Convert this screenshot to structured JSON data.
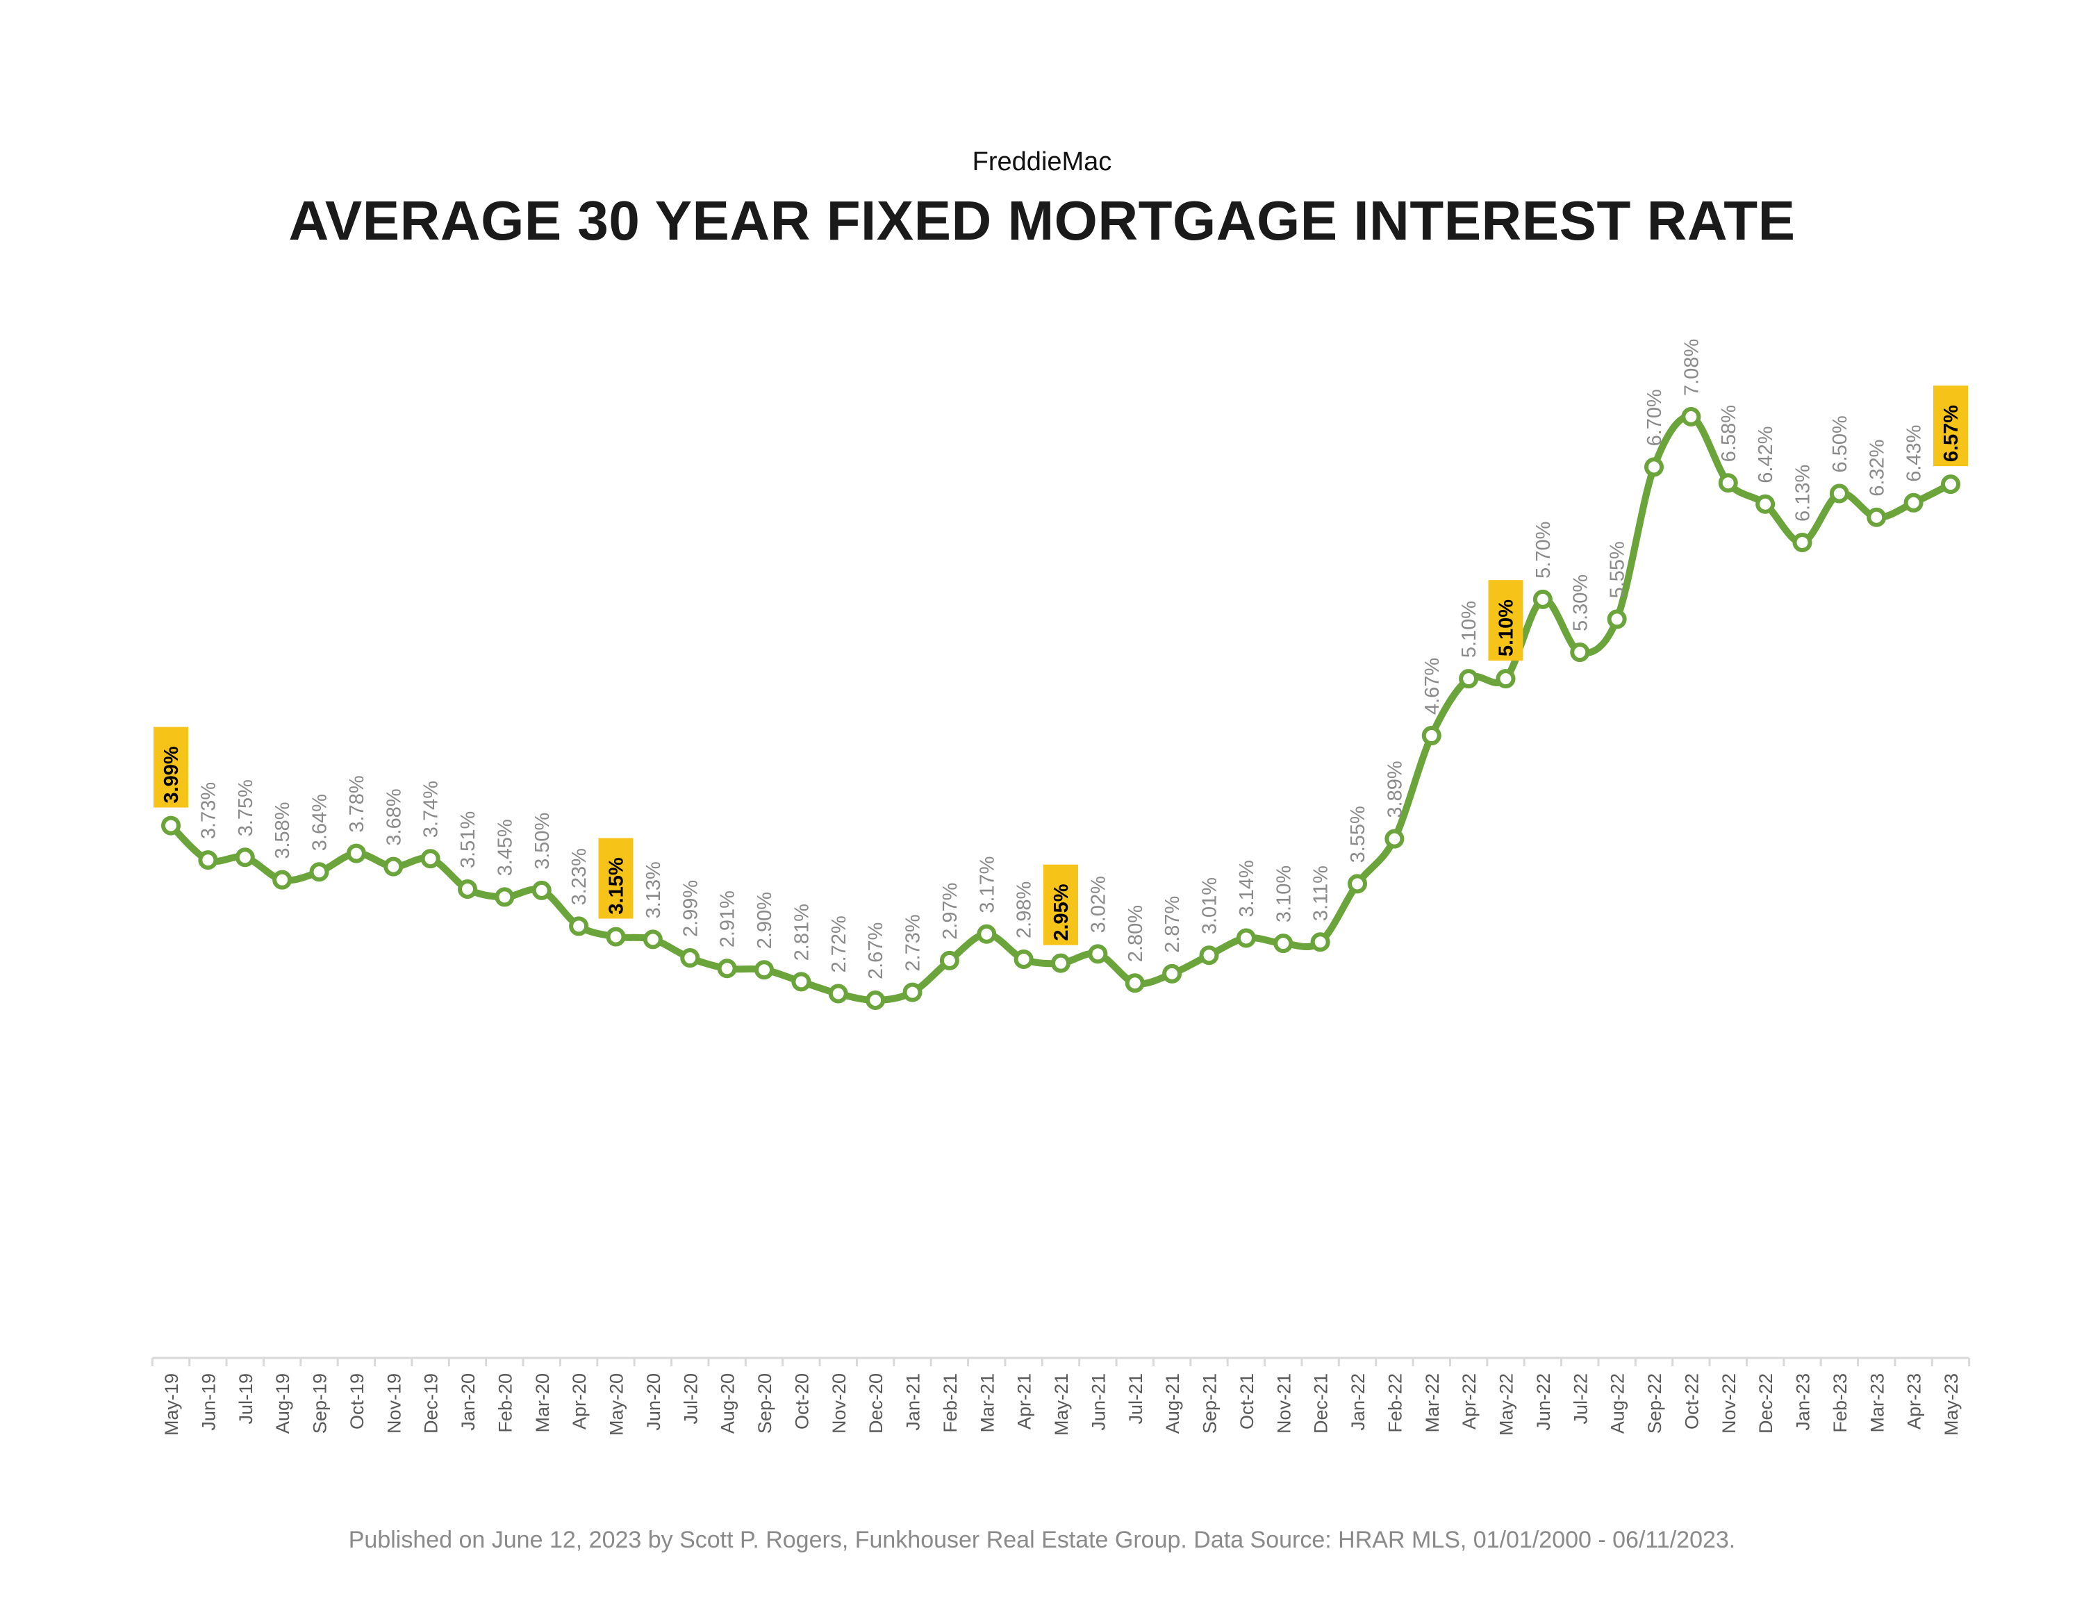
{
  "header": {
    "source_label": "FreddieMac",
    "title": "AVERAGE 30 YEAR FIXED MORTGAGE INTEREST RATE"
  },
  "footer": {
    "text": "Published on June 12, 2023 by Scott P. Rogers, Funkhouser Real Estate Group. Data Source: HRAR MLS, 01/01/2000 - 06/11/2023."
  },
  "colors": {
    "line": "#6aa43a",
    "marker_fill": "#ffffff",
    "highlight_bg": "#f6c318",
    "label_text": "#8a8a8a",
    "axis": "#d9d9d9",
    "tick_text": "#595959"
  },
  "chart_data": {
    "type": "line",
    "title": "AVERAGE 30 YEAR FIXED MORTGAGE INTEREST RATE",
    "subtitle": "FreddieMac",
    "xlabel": "",
    "ylabel": "",
    "grid": false,
    "legend": "none",
    "ylim": [
      2.0,
      7.5
    ],
    "categories": [
      "May-19",
      "Jun-19",
      "Jul-19",
      "Aug-19",
      "Sep-19",
      "Oct-19",
      "Nov-19",
      "Dec-19",
      "Jan-20",
      "Feb-20",
      "Mar-20",
      "Apr-20",
      "May-20",
      "Jun-20",
      "Jul-20",
      "Aug-20",
      "Sep-20",
      "Oct-20",
      "Nov-20",
      "Dec-20",
      "Jan-21",
      "Feb-21",
      "Mar-21",
      "Apr-21",
      "May-21",
      "Jun-21",
      "Jul-21",
      "Aug-21",
      "Sep-21",
      "Oct-21",
      "Nov-21",
      "Dec-21",
      "Jan-22",
      "Feb-22",
      "Mar-22",
      "Apr-22",
      "May-22",
      "Jun-22",
      "Jul-22",
      "Aug-22",
      "Sep-22",
      "Oct-22",
      "Nov-22",
      "Dec-22",
      "Jan-23",
      "Feb-23",
      "Mar-23",
      "Apr-23",
      "May-23"
    ],
    "values": [
      3.99,
      3.73,
      3.75,
      3.58,
      3.64,
      3.78,
      3.68,
      3.74,
      3.51,
      3.45,
      3.5,
      3.23,
      3.15,
      3.13,
      2.99,
      2.91,
      2.9,
      2.81,
      2.72,
      2.67,
      2.73,
      2.97,
      3.17,
      2.98,
      2.95,
      3.02,
      2.8,
      2.87,
      3.01,
      3.14,
      3.1,
      3.11,
      3.55,
      3.89,
      4.67,
      5.1,
      5.1,
      5.7,
      5.3,
      5.55,
      6.7,
      7.08,
      6.58,
      6.42,
      6.13,
      6.5,
      6.32,
      6.43,
      6.57
    ],
    "labels": [
      "3.99%",
      "3.73%",
      "3.75%",
      "3.58%",
      "3.64%",
      "3.78%",
      "3.68%",
      "3.74%",
      "3.51%",
      "3.45%",
      "3.50%",
      "3.23%",
      "3.15%",
      "3.13%",
      "2.99%",
      "2.91%",
      "2.90%",
      "2.81%",
      "2.72%",
      "2.67%",
      "2.73%",
      "2.97%",
      "3.17%",
      "2.98%",
      "2.95%",
      "3.02%",
      "2.80%",
      "2.87%",
      "3.01%",
      "3.14%",
      "3.10%",
      "3.11%",
      "3.55%",
      "3.89%",
      "4.67%",
      "5.10%",
      "5.10%",
      "5.70%",
      "5.30%",
      "5.55%",
      "6.70%",
      "7.08%",
      "6.58%",
      "6.42%",
      "6.13%",
      "6.50%",
      "6.32%",
      "6.43%",
      "6.57%"
    ],
    "highlighted": [
      "May-19",
      "May-20",
      "May-21",
      "May-22",
      "May-23"
    ]
  }
}
